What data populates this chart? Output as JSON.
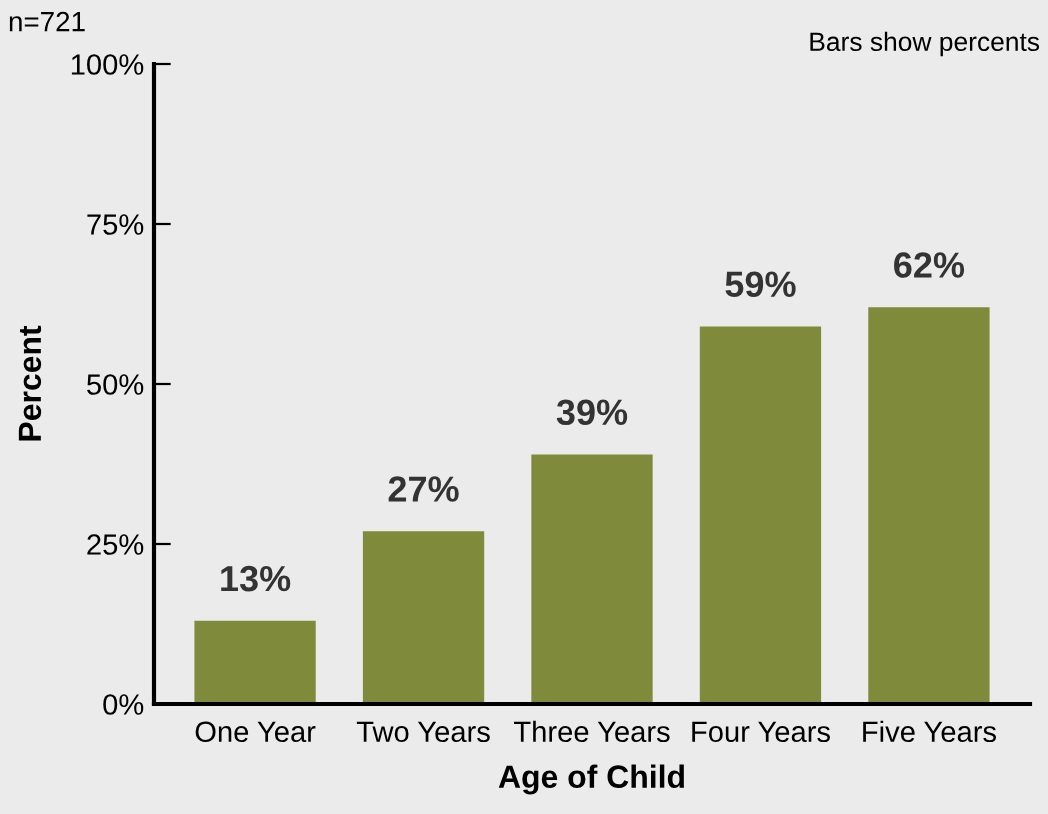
{
  "chart_data": {
    "type": "bar",
    "xlabel": "Age of Child",
    "ylabel": "Percent",
    "categories": [
      "One Year",
      "Two Years",
      "Three Years",
      "Four Years",
      "Five Years"
    ],
    "values": [
      13,
      27,
      39,
      59,
      62
    ],
    "color": "#7f8a3b",
    "value_labels": [
      "13%",
      "27%",
      "39%",
      "59%",
      "62%"
    ],
    "ylim": [
      0,
      100
    ],
    "yticks": [
      {
        "value": 0,
        "label": "0%"
      },
      {
        "value": 25,
        "label": "25%"
      },
      {
        "value": 50,
        "label": "50%"
      },
      {
        "value": 75,
        "label": "75%"
      },
      {
        "value": 100,
        "label": "100%"
      }
    ],
    "grid": false,
    "legend": false,
    "annotations": [
      "n=721",
      "Bars show percents"
    ]
  }
}
